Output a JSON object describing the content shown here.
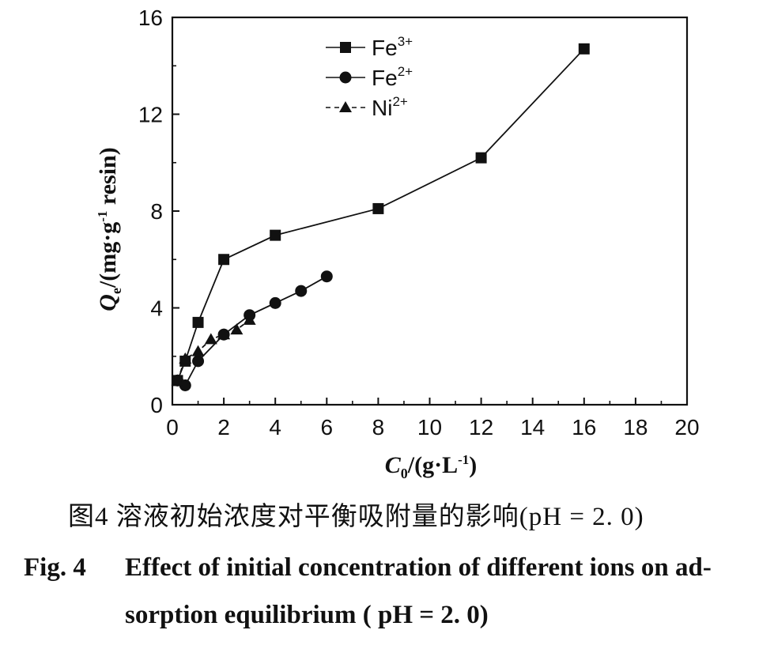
{
  "chart_data": {
    "type": "line",
    "xlabel": "C0/(g·L-1)",
    "ylabel": "Qe/(mg·g-1 resin)",
    "xlim": [
      0,
      20
    ],
    "ylim": [
      0,
      16
    ],
    "xticks": [
      0,
      2,
      4,
      6,
      8,
      10,
      12,
      14,
      16,
      18,
      20
    ],
    "yticks": [
      0,
      4,
      8,
      12,
      16
    ],
    "grid": false,
    "legend_position": "top-center",
    "series": [
      {
        "name": "Fe3+",
        "marker": "square",
        "line": "solid",
        "x": [
          0.2,
          0.5,
          1.0,
          2.0,
          4.0,
          8.0,
          12.0,
          16.0
        ],
        "y": [
          1.0,
          1.8,
          3.4,
          6.0,
          7.0,
          8.1,
          10.2,
          14.7
        ]
      },
      {
        "name": "Fe2+",
        "marker": "circle",
        "line": "solid",
        "x": [
          0.2,
          0.5,
          1.0,
          2.0,
          3.0,
          4.0,
          5.0,
          6.0
        ],
        "y": [
          1.0,
          0.8,
          1.8,
          2.9,
          3.7,
          4.2,
          4.7,
          5.3
        ]
      },
      {
        "name": "Ni2+",
        "marker": "triangle",
        "line": "dashed",
        "x": [
          0.2,
          0.5,
          1.0,
          1.5,
          2.0,
          2.5,
          3.0
        ],
        "y": [
          1.0,
          1.9,
          2.2,
          2.7,
          2.9,
          3.1,
          3.5
        ]
      }
    ],
    "legend_labels": [
      {
        "base": "Fe",
        "sup": "3+"
      },
      {
        "base": "Fe",
        "sup": "2+"
      },
      {
        "base": "Ni",
        "sup": "2+"
      }
    ],
    "xlabel_parts": {
      "main": "C",
      "sub": "0",
      "rest": "/(g·L",
      "sup": "-1",
      "end": ")"
    },
    "ylabel_parts": {
      "main": "Q",
      "sub": "e",
      "rest": "/(mg·g",
      "sup": "-1",
      "end": " resin)"
    }
  },
  "caption": {
    "cn": "图4 溶液初始浓度对平衡吸附量的影响(pH = 2. 0)",
    "en_label": "Fig. 4",
    "en_line1": "Effect of initial concentration of different ions on ad-",
    "en_line2": "sorption equilibrium ( pH = 2. 0)"
  }
}
